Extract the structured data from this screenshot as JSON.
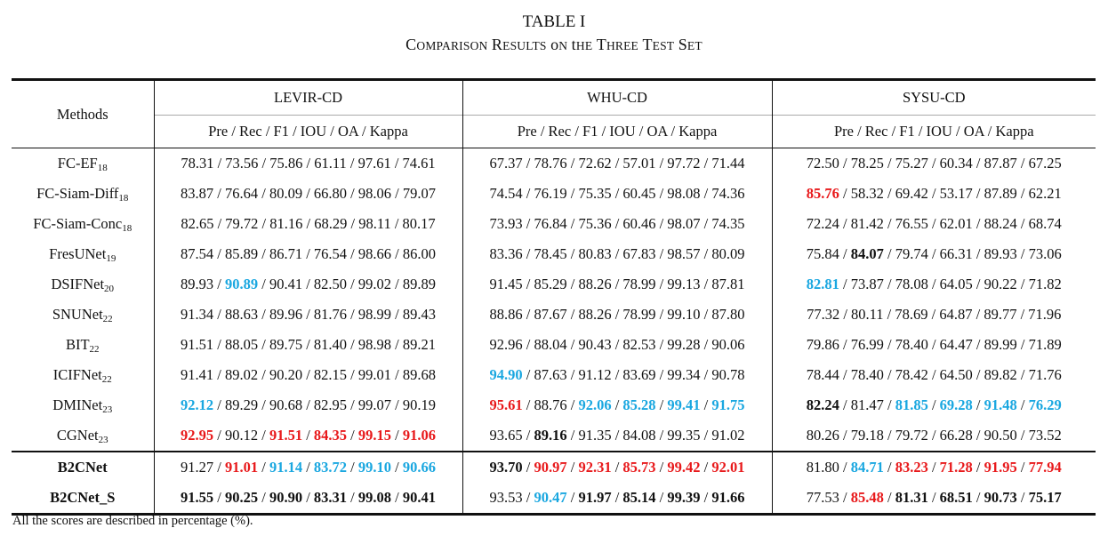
{
  "title": "TABLE I",
  "subtitle": "Comparison Results on the Three Test Set",
  "header": {
    "methods": "Methods",
    "datasets": [
      "LEVIR-CD",
      "WHU-CD",
      "SYSU-CD"
    ],
    "metrics": "Pre / Rec / F1 / IOU / OA / Kappa"
  },
  "styles": {
    "red": "#e8191b",
    "blue": "#1aa7e0"
  },
  "rows": [
    {
      "name": "FC-EF",
      "sub": "18",
      "bold_name": false,
      "data": [
        [
          [
            "78.31",
            ""
          ],
          [
            "73.56",
            ""
          ],
          [
            "75.86",
            ""
          ],
          [
            "61.11",
            ""
          ],
          [
            "97.61",
            ""
          ],
          [
            "74.61",
            ""
          ]
        ],
        [
          [
            "67.37",
            ""
          ],
          [
            "78.76",
            ""
          ],
          [
            "72.62",
            ""
          ],
          [
            "57.01",
            ""
          ],
          [
            "97.72",
            ""
          ],
          [
            "71.44",
            ""
          ]
        ],
        [
          [
            "72.50",
            ""
          ],
          [
            "78.25",
            ""
          ],
          [
            "75.27",
            ""
          ],
          [
            "60.34",
            ""
          ],
          [
            "87.87",
            ""
          ],
          [
            "67.25",
            ""
          ]
        ]
      ]
    },
    {
      "name": "FC-Siam-Diff",
      "sub": "18",
      "bold_name": false,
      "data": [
        [
          [
            "83.87",
            ""
          ],
          [
            "76.64",
            ""
          ],
          [
            "80.09",
            ""
          ],
          [
            "66.80",
            ""
          ],
          [
            "98.06",
            ""
          ],
          [
            "79.07",
            ""
          ]
        ],
        [
          [
            "74.54",
            ""
          ],
          [
            "76.19",
            ""
          ],
          [
            "75.35",
            ""
          ],
          [
            "60.45",
            ""
          ],
          [
            "98.08",
            ""
          ],
          [
            "74.36",
            ""
          ]
        ],
        [
          [
            "85.76",
            "red"
          ],
          [
            "58.32",
            ""
          ],
          [
            "69.42",
            ""
          ],
          [
            "53.17",
            ""
          ],
          [
            "87.89",
            ""
          ],
          [
            "62.21",
            ""
          ]
        ]
      ]
    },
    {
      "name": "FC-Siam-Conc",
      "sub": "18",
      "bold_name": false,
      "data": [
        [
          [
            "82.65",
            ""
          ],
          [
            "79.72",
            ""
          ],
          [
            "81.16",
            ""
          ],
          [
            "68.29",
            ""
          ],
          [
            "98.11",
            ""
          ],
          [
            "80.17",
            ""
          ]
        ],
        [
          [
            "73.93",
            ""
          ],
          [
            "76.84",
            ""
          ],
          [
            "75.36",
            ""
          ],
          [
            "60.46",
            ""
          ],
          [
            "98.07",
            ""
          ],
          [
            "74.35",
            ""
          ]
        ],
        [
          [
            "72.24",
            ""
          ],
          [
            "81.42",
            ""
          ],
          [
            "76.55",
            ""
          ],
          [
            "62.01",
            ""
          ],
          [
            "88.24",
            ""
          ],
          [
            "68.74",
            ""
          ]
        ]
      ]
    },
    {
      "name": "FresUNet",
      "sub": "19",
      "bold_name": false,
      "data": [
        [
          [
            "87.54",
            ""
          ],
          [
            "85.89",
            ""
          ],
          [
            "86.71",
            ""
          ],
          [
            "76.54",
            ""
          ],
          [
            "98.66",
            ""
          ],
          [
            "86.00",
            ""
          ]
        ],
        [
          [
            "83.36",
            ""
          ],
          [
            "78.45",
            ""
          ],
          [
            "80.83",
            ""
          ],
          [
            "67.83",
            ""
          ],
          [
            "98.57",
            ""
          ],
          [
            "80.09",
            ""
          ]
        ],
        [
          [
            "75.84",
            ""
          ],
          [
            "84.07",
            "bold"
          ],
          [
            "79.74",
            ""
          ],
          [
            "66.31",
            ""
          ],
          [
            "89.93",
            ""
          ],
          [
            "73.06",
            ""
          ]
        ]
      ]
    },
    {
      "name": "DSIFNet",
      "sub": "20",
      "bold_name": false,
      "data": [
        [
          [
            "89.93",
            ""
          ],
          [
            "90.89",
            "blue"
          ],
          [
            "90.41",
            ""
          ],
          [
            "82.50",
            ""
          ],
          [
            "99.02",
            ""
          ],
          [
            "89.89",
            ""
          ]
        ],
        [
          [
            "91.45",
            ""
          ],
          [
            "85.29",
            ""
          ],
          [
            "88.26",
            ""
          ],
          [
            "78.99",
            ""
          ],
          [
            "99.13",
            ""
          ],
          [
            "87.81",
            ""
          ]
        ],
        [
          [
            "82.81",
            "blue"
          ],
          [
            "73.87",
            ""
          ],
          [
            "78.08",
            ""
          ],
          [
            "64.05",
            ""
          ],
          [
            "90.22",
            ""
          ],
          [
            "71.82",
            ""
          ]
        ]
      ]
    },
    {
      "name": "SNUNet",
      "sub": "22",
      "bold_name": false,
      "data": [
        [
          [
            "91.34",
            ""
          ],
          [
            "88.63",
            ""
          ],
          [
            "89.96",
            ""
          ],
          [
            "81.76",
            ""
          ],
          [
            "98.99",
            ""
          ],
          [
            "89.43",
            ""
          ]
        ],
        [
          [
            "88.86",
            ""
          ],
          [
            "87.67",
            ""
          ],
          [
            "88.26",
            ""
          ],
          [
            "78.99",
            ""
          ],
          [
            "99.10",
            ""
          ],
          [
            "87.80",
            ""
          ]
        ],
        [
          [
            "77.32",
            ""
          ],
          [
            "80.11",
            ""
          ],
          [
            "78.69",
            ""
          ],
          [
            "64.87",
            ""
          ],
          [
            "89.77",
            ""
          ],
          [
            "71.96",
            ""
          ]
        ]
      ]
    },
    {
      "name": "BIT",
      "sub": "22",
      "bold_name": false,
      "data": [
        [
          [
            "91.51",
            ""
          ],
          [
            "88.05",
            ""
          ],
          [
            "89.75",
            ""
          ],
          [
            "81.40",
            ""
          ],
          [
            "98.98",
            ""
          ],
          [
            "89.21",
            ""
          ]
        ],
        [
          [
            "92.96",
            ""
          ],
          [
            "88.04",
            ""
          ],
          [
            "90.43",
            ""
          ],
          [
            "82.53",
            ""
          ],
          [
            "99.28",
            ""
          ],
          [
            "90.06",
            ""
          ]
        ],
        [
          [
            "79.86",
            ""
          ],
          [
            "76.99",
            ""
          ],
          [
            "78.40",
            ""
          ],
          [
            "64.47",
            ""
          ],
          [
            "89.99",
            ""
          ],
          [
            "71.89",
            ""
          ]
        ]
      ]
    },
    {
      "name": "ICIFNet",
      "sub": "22",
      "bold_name": false,
      "data": [
        [
          [
            "91.41",
            ""
          ],
          [
            "89.02",
            ""
          ],
          [
            "90.20",
            ""
          ],
          [
            "82.15",
            ""
          ],
          [
            "99.01",
            ""
          ],
          [
            "89.68",
            ""
          ]
        ],
        [
          [
            "94.90",
            "blue"
          ],
          [
            "87.63",
            ""
          ],
          [
            "91.12",
            ""
          ],
          [
            "83.69",
            ""
          ],
          [
            "99.34",
            ""
          ],
          [
            "90.78",
            ""
          ]
        ],
        [
          [
            "78.44",
            ""
          ],
          [
            "78.40",
            ""
          ],
          [
            "78.42",
            ""
          ],
          [
            "64.50",
            ""
          ],
          [
            "89.82",
            ""
          ],
          [
            "71.76",
            ""
          ]
        ]
      ]
    },
    {
      "name": "DMINet",
      "sub": "23",
      "bold_name": false,
      "data": [
        [
          [
            "92.12",
            "blue"
          ],
          [
            "89.29",
            ""
          ],
          [
            "90.68",
            ""
          ],
          [
            "82.95",
            ""
          ],
          [
            "99.07",
            ""
          ],
          [
            "90.19",
            ""
          ]
        ],
        [
          [
            "95.61",
            "red"
          ],
          [
            "88.76",
            ""
          ],
          [
            "92.06",
            "blue"
          ],
          [
            "85.28",
            "blue"
          ],
          [
            "99.41",
            "blue"
          ],
          [
            "91.75",
            "blue"
          ]
        ],
        [
          [
            "82.24",
            "bold"
          ],
          [
            "81.47",
            ""
          ],
          [
            "81.85",
            "blue"
          ],
          [
            "69.28",
            "blue"
          ],
          [
            "91.48",
            "blue"
          ],
          [
            "76.29",
            "blue"
          ]
        ]
      ]
    },
    {
      "name": "CGNet",
      "sub": "23",
      "bold_name": false,
      "data": [
        [
          [
            "92.95",
            "red"
          ],
          [
            "90.12",
            ""
          ],
          [
            "91.51",
            "red"
          ],
          [
            "84.35",
            "red"
          ],
          [
            "99.15",
            "red"
          ],
          [
            "91.06",
            "red"
          ]
        ],
        [
          [
            "93.65",
            ""
          ],
          [
            "89.16",
            "bold"
          ],
          [
            "91.35",
            ""
          ],
          [
            "84.08",
            ""
          ],
          [
            "99.35",
            ""
          ],
          [
            "91.02",
            ""
          ]
        ],
        [
          [
            "80.26",
            ""
          ],
          [
            "79.18",
            ""
          ],
          [
            "79.72",
            ""
          ],
          [
            "66.28",
            ""
          ],
          [
            "90.50",
            ""
          ],
          [
            "73.52",
            ""
          ]
        ]
      ]
    },
    {
      "name": "B2CNet",
      "sub": "",
      "bold_name": true,
      "data": [
        [
          [
            "91.27",
            ""
          ],
          [
            "91.01",
            "red"
          ],
          [
            "91.14",
            "blue"
          ],
          [
            "83.72",
            "blue"
          ],
          [
            "99.10",
            "blue"
          ],
          [
            "90.66",
            "blue"
          ]
        ],
        [
          [
            "93.70",
            "bold"
          ],
          [
            "90.97",
            "red"
          ],
          [
            "92.31",
            "red"
          ],
          [
            "85.73",
            "red"
          ],
          [
            "99.42",
            "red"
          ],
          [
            "92.01",
            "red"
          ]
        ],
        [
          [
            "81.80",
            ""
          ],
          [
            "84.71",
            "blue"
          ],
          [
            "83.23",
            "red"
          ],
          [
            "71.28",
            "red"
          ],
          [
            "91.95",
            "red"
          ],
          [
            "77.94",
            "red"
          ]
        ]
      ]
    },
    {
      "name": "B2CNet_S",
      "sub": "",
      "bold_name": true,
      "data": [
        [
          [
            "91.55",
            "bold"
          ],
          [
            "90.25",
            "bold"
          ],
          [
            "90.90",
            "bold"
          ],
          [
            "83.31",
            "bold"
          ],
          [
            "99.08",
            "bold"
          ],
          [
            "90.41",
            "bold"
          ]
        ],
        [
          [
            "93.53",
            ""
          ],
          [
            "90.47",
            "blue"
          ],
          [
            "91.97",
            "bold"
          ],
          [
            "85.14",
            "bold"
          ],
          [
            "99.39",
            "bold"
          ],
          [
            "91.66",
            "bold"
          ]
        ],
        [
          [
            "77.53",
            ""
          ],
          [
            "85.48",
            "red"
          ],
          [
            "81.31",
            "bold"
          ],
          [
            "68.51",
            "bold"
          ],
          [
            "90.73",
            "bold"
          ],
          [
            "75.17",
            "bold"
          ]
        ]
      ]
    }
  ],
  "footnote": "All the scores are described in percentage (%)."
}
